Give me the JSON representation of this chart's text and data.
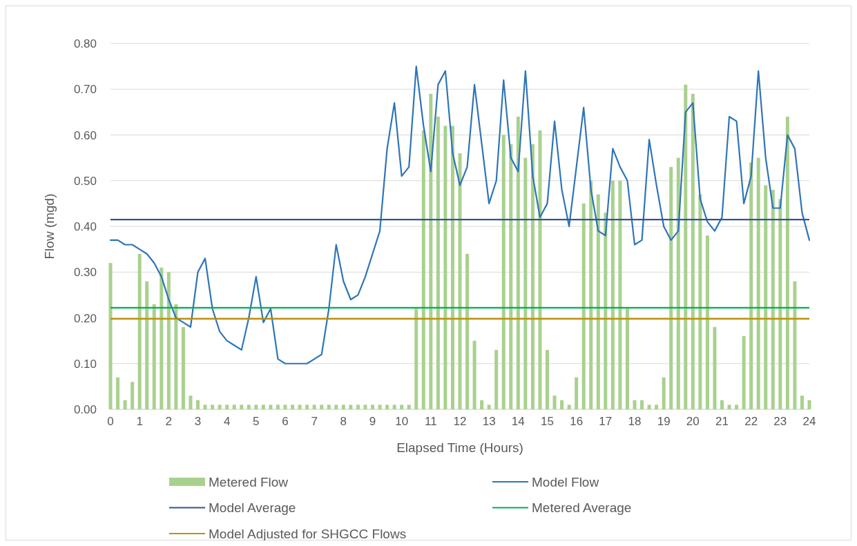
{
  "chart_data": {
    "type": "bar",
    "xlabel": "Elapsed Time (Hours)",
    "ylabel": "Flow (mgd)",
    "x": [
      0,
      0.25,
      0.5,
      0.75,
      1,
      1.25,
      1.5,
      1.75,
      2,
      2.25,
      2.5,
      2.75,
      3,
      3.25,
      3.5,
      3.75,
      4,
      4.25,
      4.5,
      4.75,
      5,
      5.25,
      5.5,
      5.75,
      6,
      6.25,
      6.5,
      6.75,
      7,
      7.25,
      7.5,
      7.75,
      8,
      8.25,
      8.5,
      8.75,
      9,
      9.25,
      9.5,
      9.75,
      10,
      10.25,
      10.5,
      10.75,
      11,
      11.25,
      11.5,
      11.75,
      12,
      12.25,
      12.5,
      12.75,
      13,
      13.25,
      13.5,
      13.75,
      14,
      14.25,
      14.5,
      14.75,
      15,
      15.25,
      15.5,
      15.75,
      16,
      16.25,
      16.5,
      16.75,
      17,
      17.25,
      17.5,
      17.75,
      18,
      18.25,
      18.5,
      18.75,
      19,
      19.25,
      19.5,
      19.75,
      20,
      20.25,
      20.5,
      20.75,
      21,
      21.25,
      21.5,
      21.75,
      22,
      22.25,
      22.5,
      22.75,
      23,
      23.25,
      23.5,
      23.75,
      24
    ],
    "series": [
      {
        "name": "Metered Flow",
        "color": "#a9d18e",
        "values": [
          0.32,
          0.07,
          0.02,
          0.06,
          0.34,
          0.28,
          0.23,
          0.31,
          0.3,
          0.23,
          0.18,
          0.03,
          0.02,
          0.01,
          0.01,
          0.01,
          0.01,
          0.01,
          0.01,
          0.01,
          0.01,
          0.01,
          0.01,
          0.01,
          0.01,
          0.01,
          0.01,
          0.01,
          0.01,
          0.01,
          0.01,
          0.01,
          0.01,
          0.01,
          0.01,
          0.01,
          0.01,
          0.01,
          0.01,
          0.01,
          0.01,
          0.01,
          0.22,
          0.61,
          0.69,
          0.64,
          0.62,
          0.62,
          0.56,
          0.34,
          0.15,
          0.02,
          0.01,
          0.13,
          0.6,
          0.58,
          0.64,
          0.55,
          0.58,
          0.61,
          0.13,
          0.03,
          0.02,
          0.01,
          0.07,
          0.45,
          0.5,
          0.47,
          0.43,
          0.5,
          0.5,
          0.22,
          0.02,
          0.02,
          0.01,
          0.01,
          0.07,
          0.53,
          0.55,
          0.71,
          0.69,
          0.47,
          0.38,
          0.18,
          0.02,
          0.01,
          0.01,
          0.16,
          0.54,
          0.55,
          0.49,
          0.48,
          0.46,
          0.64,
          0.28,
          0.03,
          0.02
        ]
      },
      {
        "name": "Model Flow",
        "type": "line",
        "color": "#2e75b6",
        "values": [
          0.37,
          0.37,
          0.36,
          0.36,
          0.35,
          0.34,
          0.32,
          0.29,
          0.24,
          0.2,
          0.19,
          0.18,
          0.3,
          0.33,
          0.22,
          0.17,
          0.15,
          0.14,
          0.13,
          0.2,
          0.29,
          0.19,
          0.22,
          0.11,
          0.1,
          0.1,
          0.1,
          0.1,
          0.11,
          0.12,
          0.22,
          0.36,
          0.28,
          0.24,
          0.25,
          0.29,
          0.34,
          0.39,
          0.57,
          0.67,
          0.51,
          0.53,
          0.75,
          0.62,
          0.52,
          0.71,
          0.74,
          0.56,
          0.49,
          0.53,
          0.71,
          0.58,
          0.45,
          0.5,
          0.72,
          0.55,
          0.52,
          0.74,
          0.51,
          0.42,
          0.45,
          0.63,
          0.48,
          0.4,
          0.53,
          0.66,
          0.48,
          0.39,
          0.38,
          0.57,
          0.53,
          0.5,
          0.36,
          0.37,
          0.59,
          0.49,
          0.4,
          0.37,
          0.39,
          0.65,
          0.67,
          0.46,
          0.41,
          0.39,
          0.42,
          0.64,
          0.63,
          0.45,
          0.51,
          0.74,
          0.55,
          0.44,
          0.44,
          0.6,
          0.57,
          0.43,
          0.37
        ]
      }
    ],
    "ref_lines": [
      {
        "axis": "y",
        "value": 0.415,
        "label": "Model Average",
        "color": "#2f5597"
      },
      {
        "axis": "y",
        "value": 0.222,
        "label": "Metered Average",
        "color": "#00b050"
      },
      {
        "axis": "y",
        "value": 0.198,
        "label": "Model Adjusted for SHGCC Flows",
        "color": "#bf9000"
      }
    ],
    "xlim": [
      0,
      24
    ],
    "xticks": [
      0,
      1,
      2,
      3,
      4,
      5,
      6,
      7,
      8,
      9,
      10,
      11,
      12,
      13,
      14,
      15,
      16,
      17,
      18,
      19,
      20,
      21,
      22,
      23,
      24
    ],
    "ylim": [
      0,
      0.8
    ],
    "yticks": [
      {
        "value": 0,
        "label": "0.00"
      },
      {
        "value": 0.1,
        "label": "0.10"
      },
      {
        "value": 0.2,
        "label": "0.20"
      },
      {
        "value": 0.3,
        "label": "0.30"
      },
      {
        "value": 0.4,
        "label": "0.40"
      },
      {
        "value": 0.5,
        "label": "0.50"
      },
      {
        "value": 0.6,
        "label": "0.60"
      },
      {
        "value": 0.7,
        "label": "0.70"
      },
      {
        "value": 0.8,
        "label": "0.80"
      }
    ],
    "grid": "y",
    "legend": "bottom"
  }
}
